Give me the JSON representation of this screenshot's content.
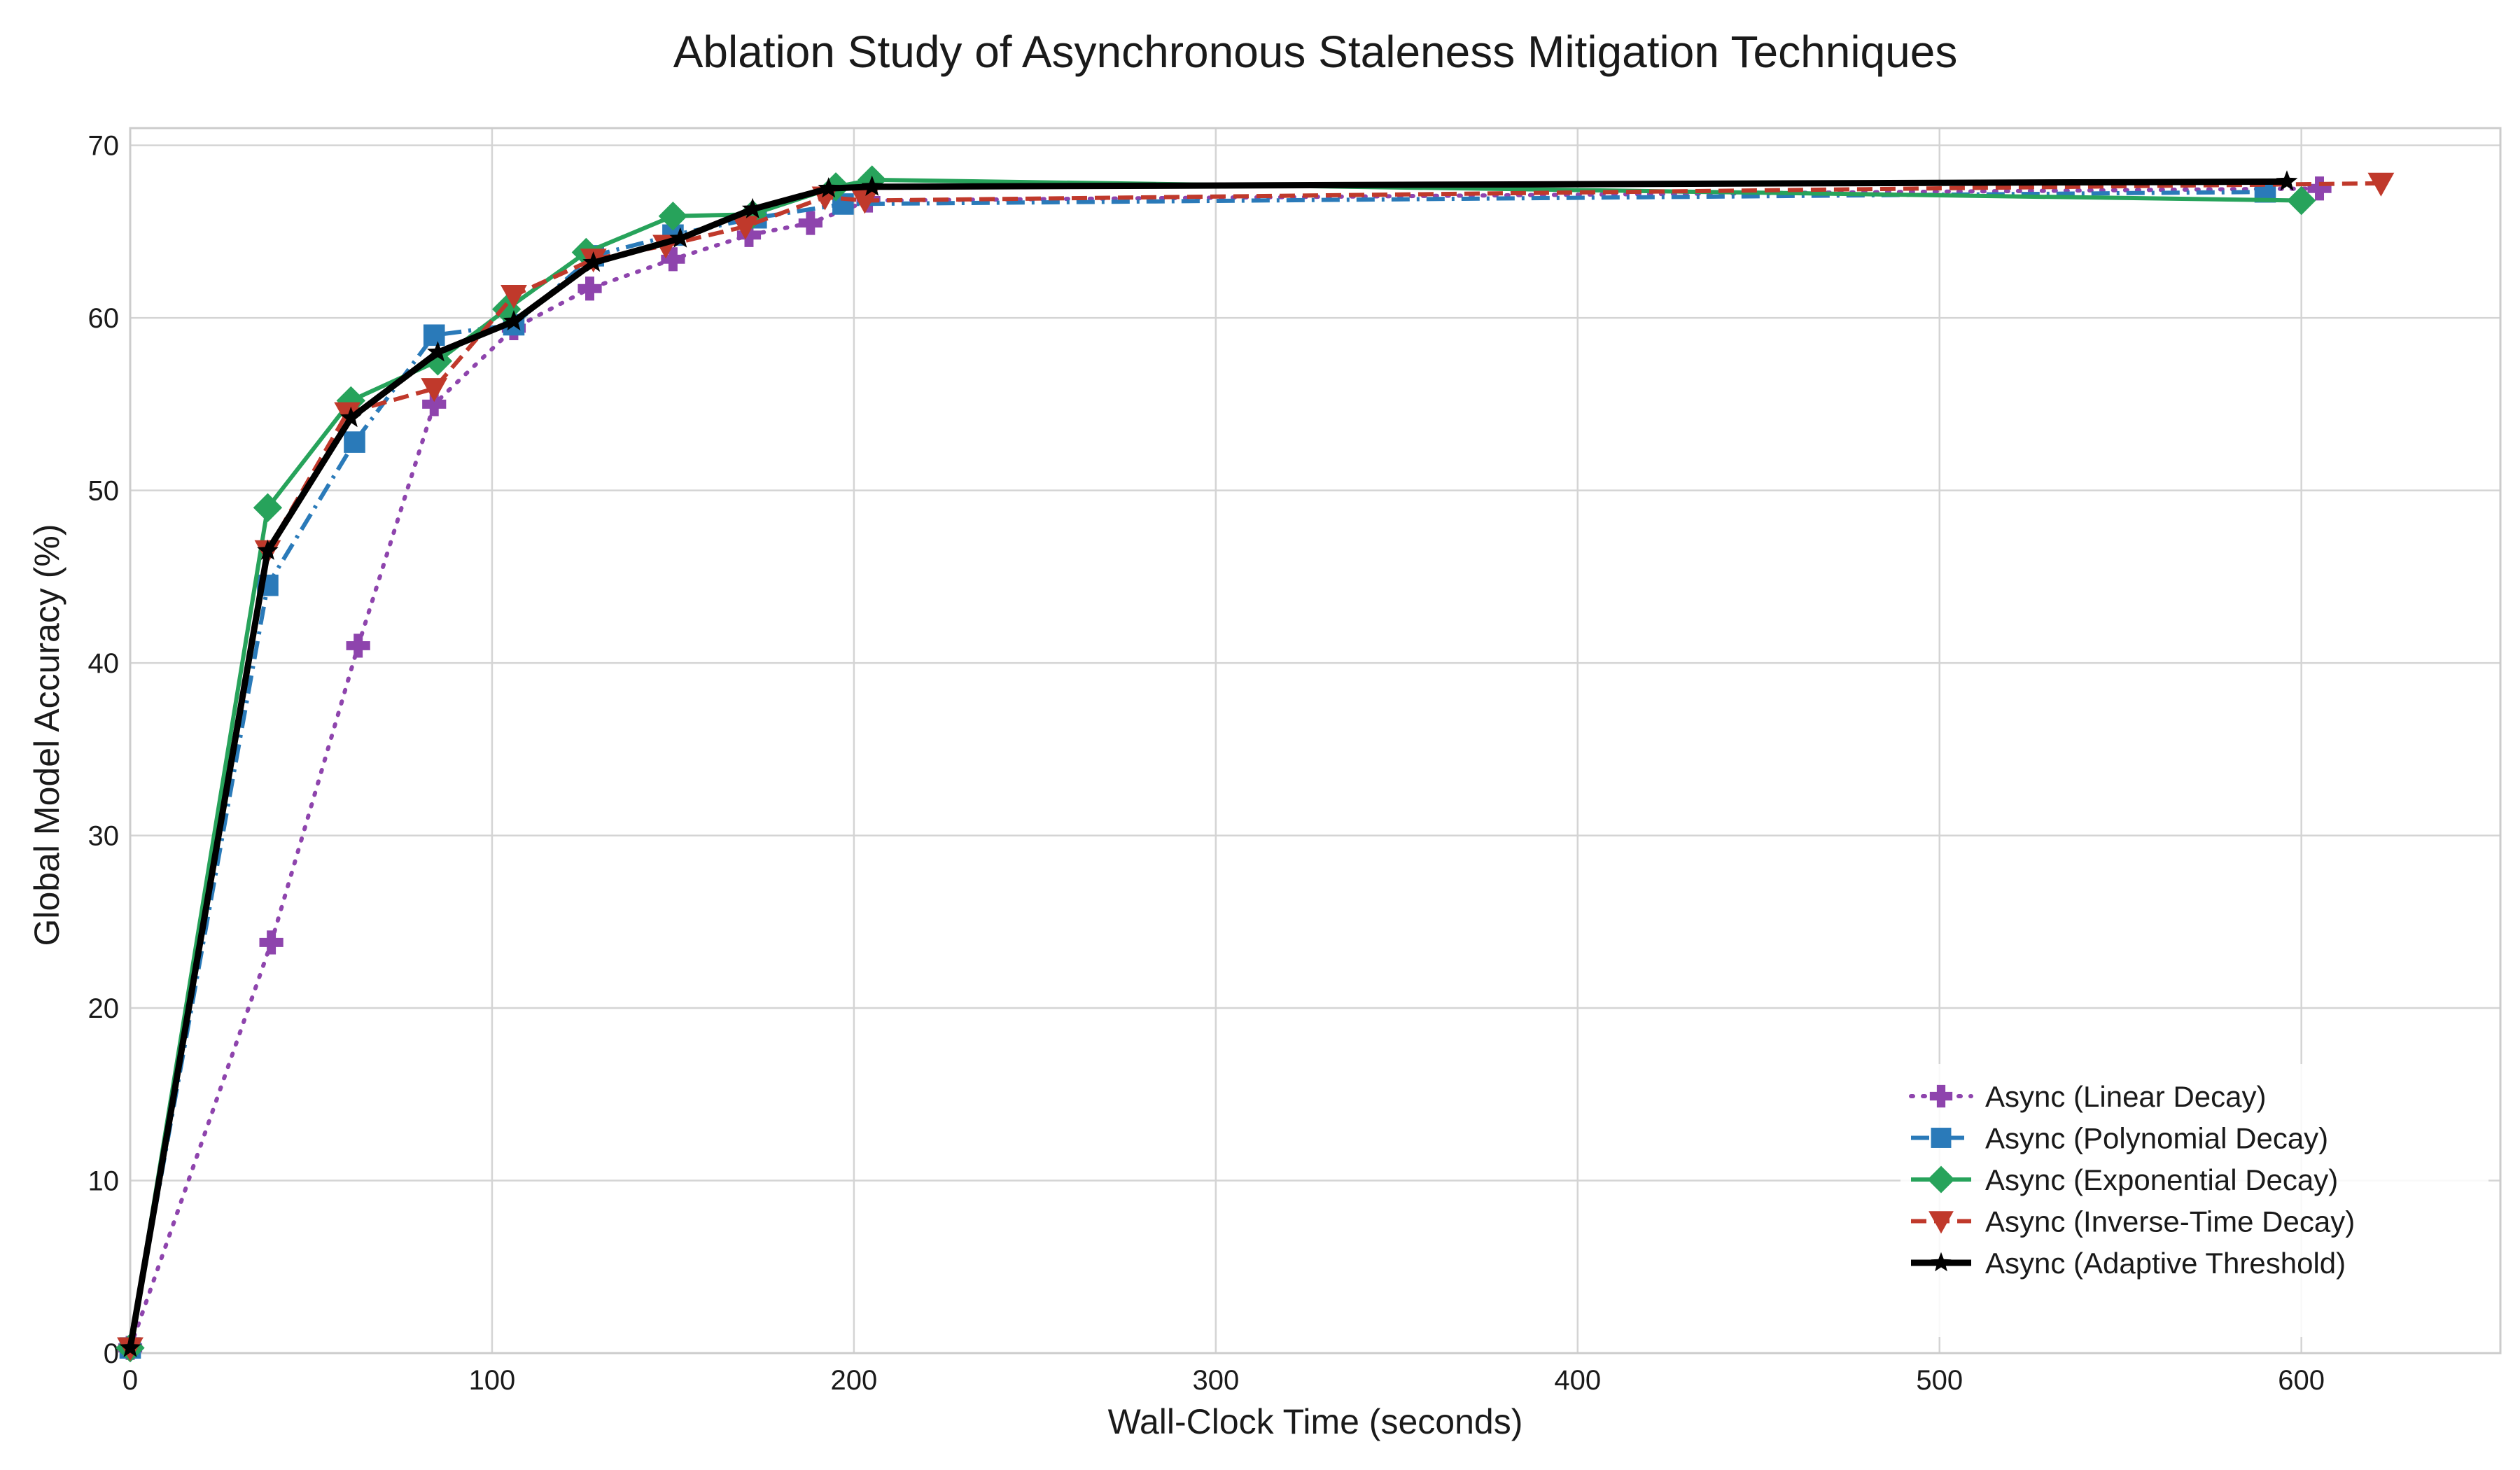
{
  "chart_data": {
    "type": "line",
    "title": "Ablation Study of Asynchronous Staleness Mitigation Techniques",
    "xlabel": "Wall-Clock Time (seconds)",
    "ylabel": "Global Model Accuracy (%)",
    "xlim": [
      0,
      655
    ],
    "ylim": [
      0,
      71
    ],
    "xticks": [
      0,
      100,
      200,
      300,
      400,
      500,
      600
    ],
    "yticks": [
      0,
      10,
      20,
      30,
      40,
      50,
      60,
      70
    ],
    "grid": true,
    "legend_position": "lower-right",
    "series": [
      {
        "name": "Async (Linear Decay)",
        "color": "#8e44ad",
        "dash": "dotted",
        "marker": "plus",
        "x": [
          0,
          39,
          63,
          84,
          106,
          127,
          150,
          171,
          188,
          204,
          605
        ],
        "y": [
          0.3,
          23.8,
          41.0,
          55.0,
          59.4,
          61.7,
          63.4,
          64.8,
          65.5,
          66.8,
          67.5
        ]
      },
      {
        "name": "Async (Polynomial Decay)",
        "color": "#2a7ab9",
        "dash": "dashdot",
        "marker": "square",
        "x": [
          0,
          38,
          62,
          84,
          106,
          128,
          150,
          173,
          197,
          590
        ],
        "y": [
          0.3,
          44.5,
          52.8,
          59.0,
          59.6,
          63.6,
          64.8,
          65.8,
          66.6,
          67.3
        ]
      },
      {
        "name": "Async (Exponential Decay)",
        "color": "#27a35b",
        "dash": "solid",
        "marker": "diamond",
        "x": [
          0,
          38,
          61,
          85,
          104,
          126,
          150,
          172,
          195,
          205,
          600
        ],
        "y": [
          0.3,
          49.0,
          55.2,
          57.5,
          60.5,
          63.8,
          65.9,
          66.0,
          67.6,
          68.0,
          66.8
        ]
      },
      {
        "name": "Async (Inverse-Time Decay)",
        "color": "#c0392b",
        "dash": "dashed",
        "marker": "triangle-down",
        "x": [
          0,
          38,
          60,
          84,
          106,
          128,
          148,
          170,
          192,
          203,
          622
        ],
        "y": [
          0.3,
          46.5,
          54.5,
          55.9,
          61.3,
          63.4,
          64.2,
          65.3,
          67.0,
          66.8,
          67.8
        ]
      },
      {
        "name": "Async (Adaptive Threshold)",
        "color": "#000000",
        "dash": "solid",
        "marker": "star",
        "x": [
          0,
          38,
          61,
          85,
          106,
          128,
          152,
          172,
          193,
          205,
          596
        ],
        "y": [
          0.3,
          46.5,
          54.2,
          58.0,
          59.8,
          63.2,
          64.6,
          66.3,
          67.5,
          67.6,
          67.9
        ]
      }
    ]
  }
}
